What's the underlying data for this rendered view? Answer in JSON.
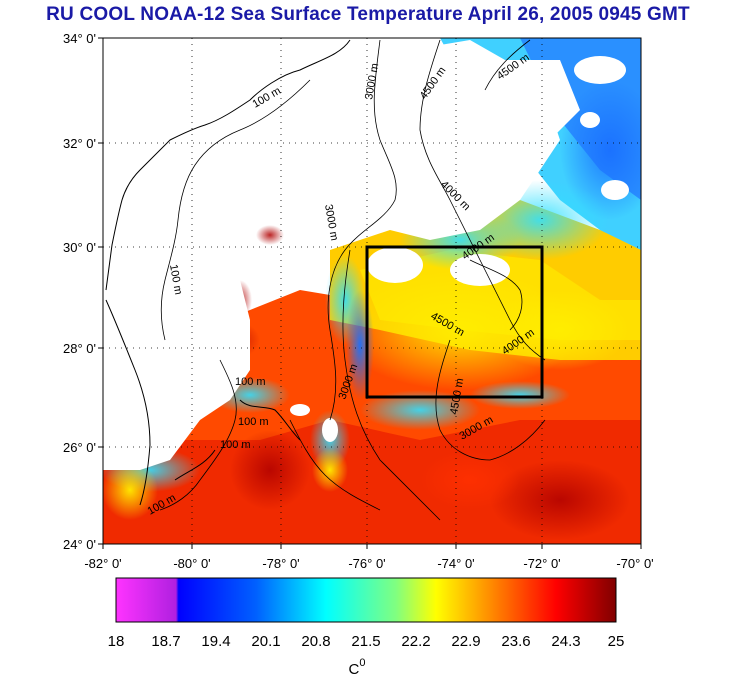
{
  "title": "RU COOL  NOAA-12 Sea Surface Temperature April 26, 2005 0945 GMT",
  "lat_ticks": [
    "34° 0'",
    "32° 0'",
    "30° 0'",
    "28° 0'",
    "26° 0'",
    "24° 0'"
  ],
  "lon_ticks": [
    "-82° 0'",
    "-80° 0'",
    "-78° 0'",
    "-76° 0'",
    "-74° 0'",
    "-72° 0'",
    "-70° 0'"
  ],
  "contour_labels": [
    "100 m",
    "100 m",
    "100 m",
    "100 m",
    "100 m",
    "100 m",
    "3000 m",
    "3000 m",
    "3000 m",
    "3000 m",
    "4500 m",
    "4500 m",
    "4500 m",
    "4500 m",
    "4000 m",
    "4000 m",
    "4000 m"
  ],
  "colorbar": {
    "ticks": [
      "18",
      "18.7",
      "19.4",
      "20.1",
      "20.8",
      "21.5",
      "22.2",
      "22.9",
      "23.6",
      "24.3",
      "25"
    ],
    "min": 18,
    "max": 25,
    "unit": "C",
    "unit_sup": "0",
    "colors": [
      "#ff33ff",
      "#0000ff",
      "#0080ff",
      "#00ffff",
      "#80ff80",
      "#ffff00",
      "#ff8000",
      "#ff0000",
      "#800000"
    ]
  },
  "map": {
    "lat_range": [
      24,
      34
    ],
    "lon_range": [
      -82,
      -70
    ],
    "box": {
      "lon_range": [
        -76,
        -72
      ],
      "lat_range": [
        27,
        30
      ]
    }
  }
}
